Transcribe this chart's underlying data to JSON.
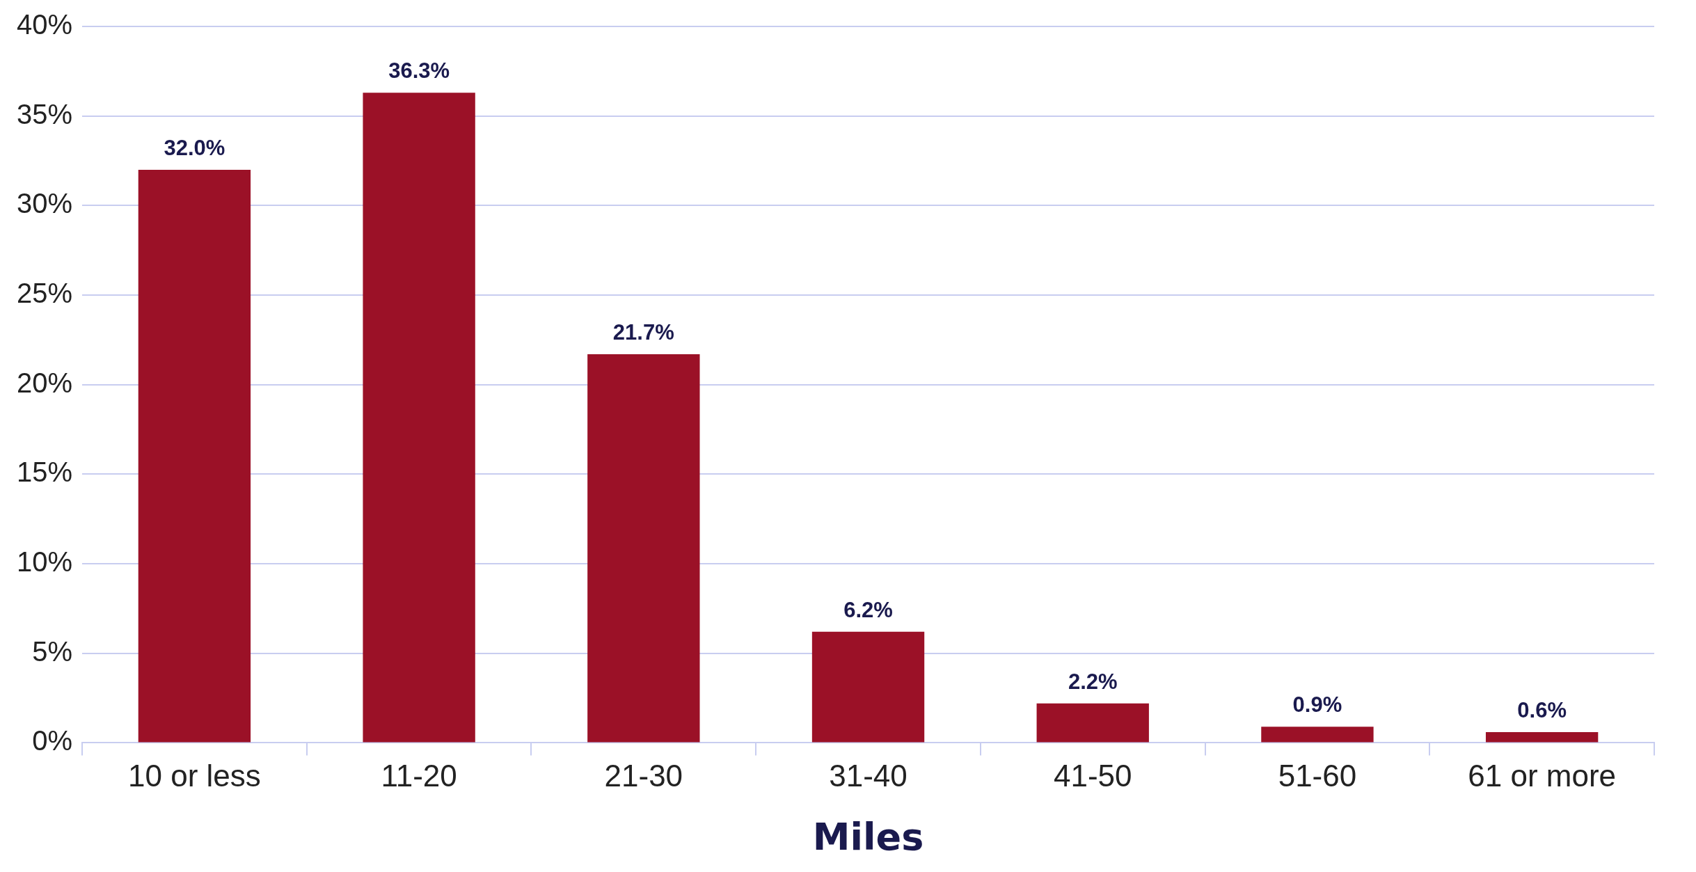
{
  "chart_data": {
    "type": "bar",
    "xlabel": "Miles",
    "categories": [
      "10 or less",
      "11-20",
      "21-30",
      "31-40",
      "41-50",
      "51-60",
      "61 or more"
    ],
    "values": [
      32.0,
      36.3,
      21.7,
      6.2,
      2.2,
      0.9,
      0.6
    ],
    "value_labels": [
      "32.0%",
      "36.3%",
      "21.7%",
      "6.2%",
      "2.2%",
      "0.9%",
      "0.6%"
    ],
    "color": "#9b1127",
    "ylim": [
      0,
      40
    ],
    "yticks": [
      {
        "value": 0,
        "label": "0%"
      },
      {
        "value": 5,
        "label": "5%"
      },
      {
        "value": 10,
        "label": "10%"
      },
      {
        "value": 15,
        "label": "15%"
      },
      {
        "value": 20,
        "label": "20%"
      },
      {
        "value": 25,
        "label": "25%"
      },
      {
        "value": 30,
        "label": "30%"
      },
      {
        "value": 35,
        "label": "35%"
      },
      {
        "value": 40,
        "label": "40%"
      }
    ],
    "grid": "y",
    "legend": false
  }
}
